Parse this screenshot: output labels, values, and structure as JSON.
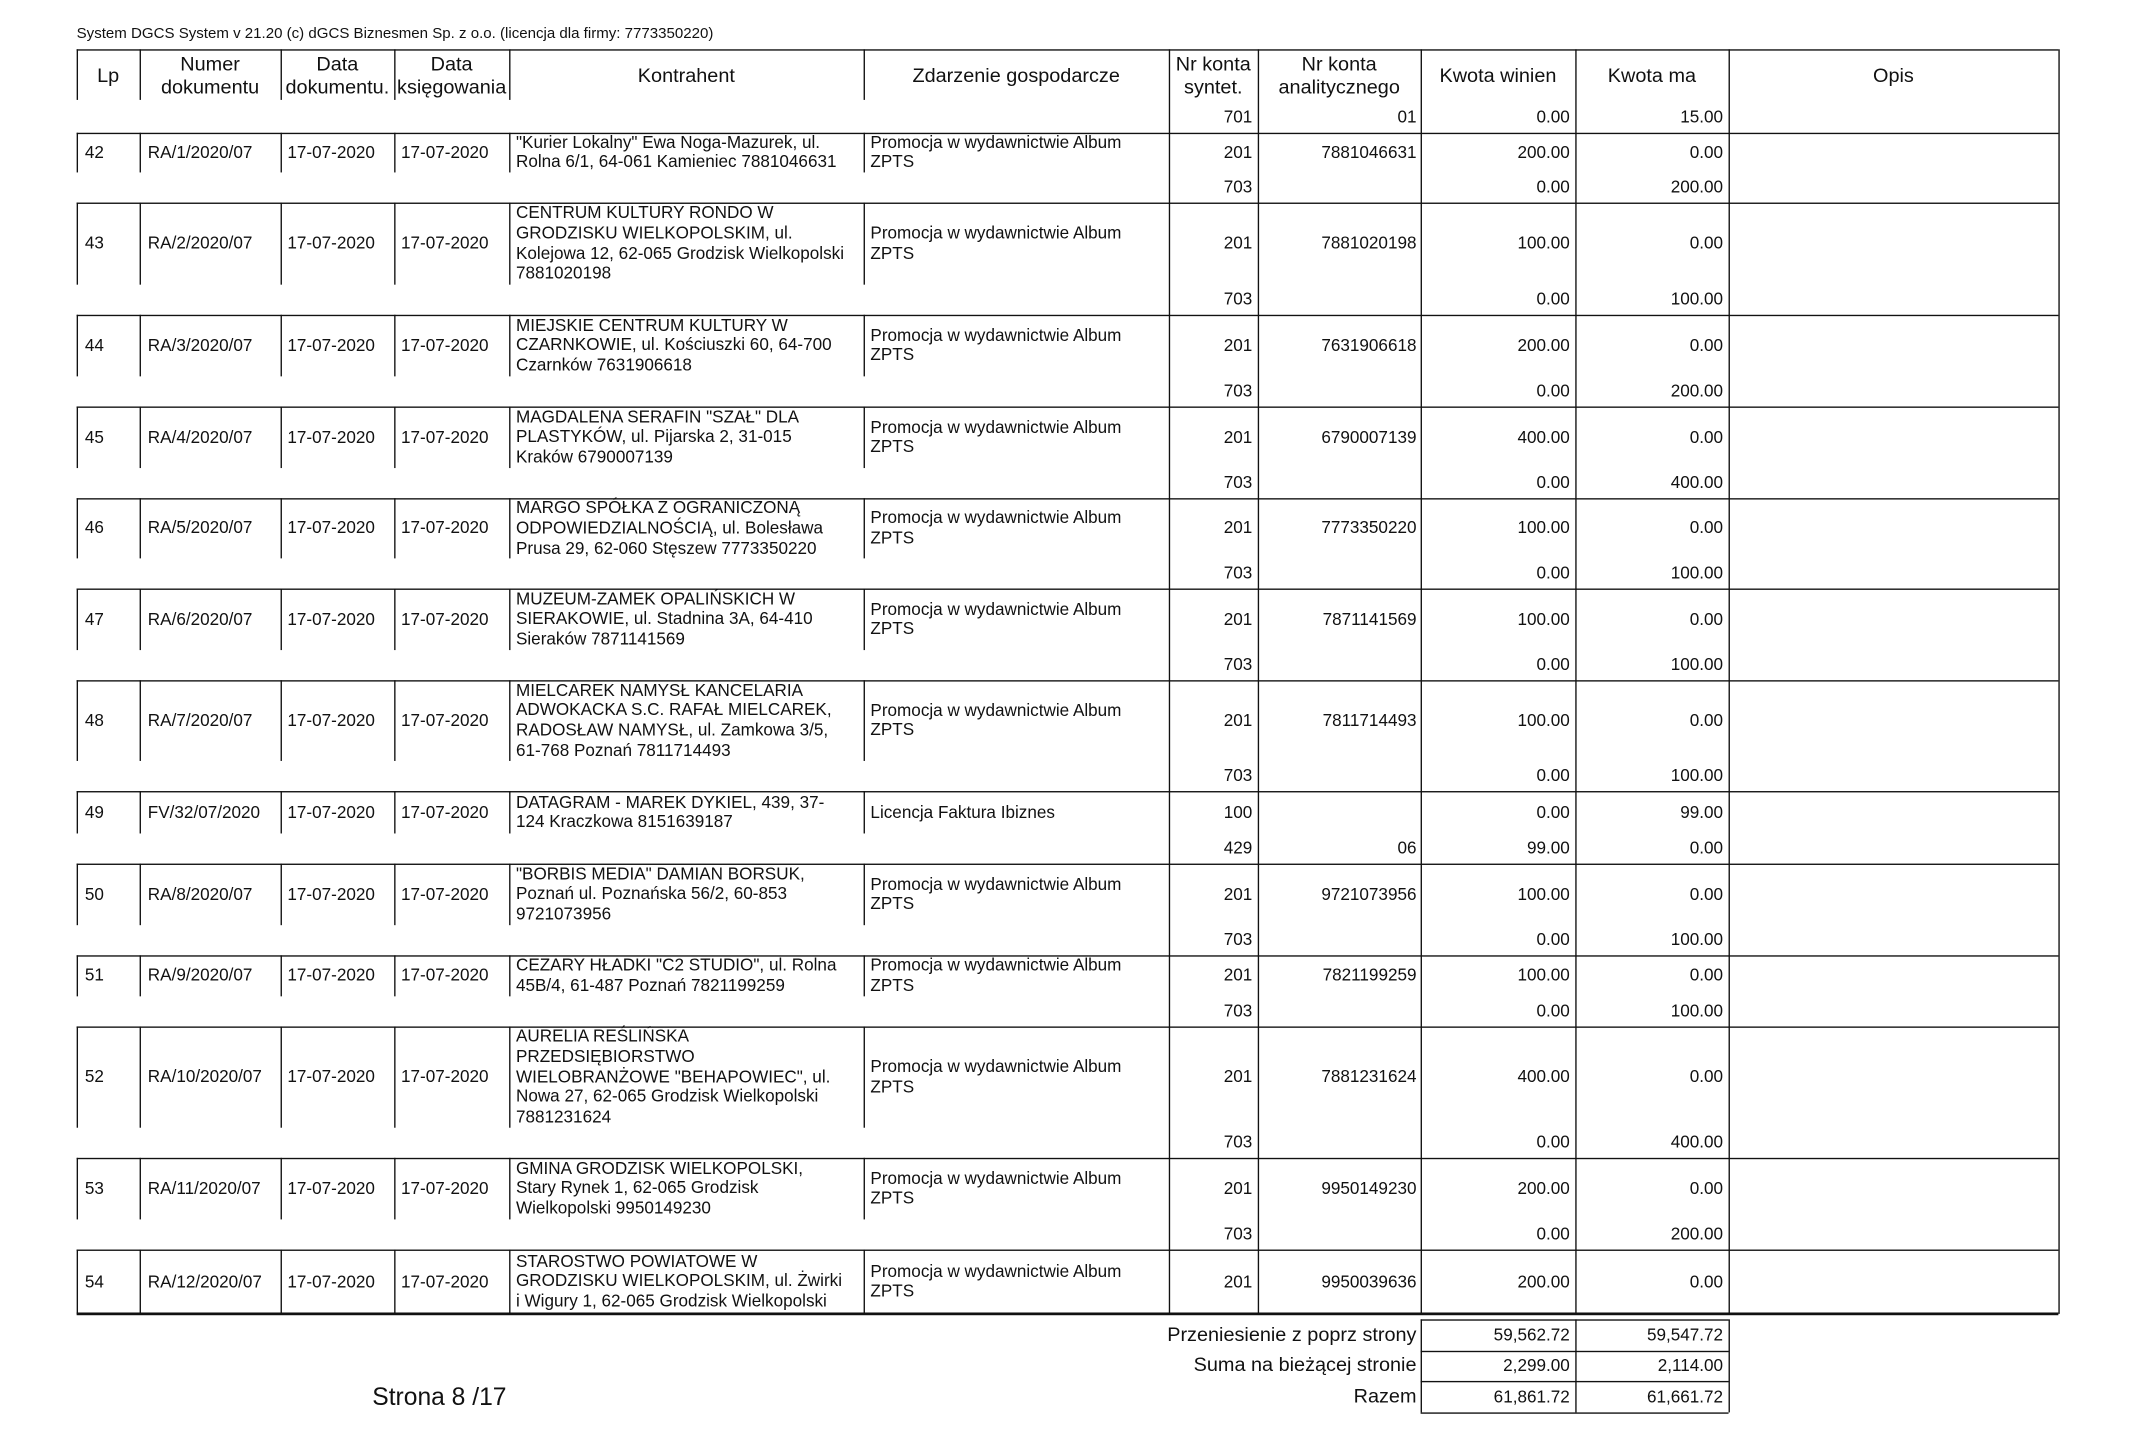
{
  "header": {
    "system": "System DGCS System v 21.20  (c) dGCS Biznesmen Sp. z o.o. (licencja dla firmy: 7773350220)"
  },
  "table": {
    "columns": [
      [
        "Lp"
      ],
      [
        "Numer",
        "dokumentu"
      ],
      [
        "Data",
        "dokumentu."
      ],
      [
        "Data",
        "księgowania"
      ],
      [
        "Kontrahent"
      ],
      [
        "Zdarzenie gospodarcze"
      ],
      [
        "Nr konta",
        "syntet."
      ],
      [
        "Nr konta",
        "analitycznego"
      ],
      [
        "Kwota winien"
      ],
      [
        "Kwota ma"
      ],
      [
        "Opis"
      ]
    ],
    "continuation": [
      {
        "syntet": "701",
        "analityczny": "01",
        "winien": "0.00",
        "ma": "15.00"
      }
    ],
    "entries": [
      {
        "lp": "42",
        "numer": "RA/1/2020/07",
        "data_dok": "17-07-2020",
        "data_ksieg": "17-07-2020",
        "kontrahent": [
          "\"Kurier Lokalny\" Ewa Noga-Mazurek, ul.",
          "Rolna 6/1, 64-061 Kamieniec 7881046631"
        ],
        "zdarzenie": [
          "Promocja w wydawnictwie Album",
          "ZPTS"
        ],
        "postings": [
          {
            "syntet": "201",
            "analityczny": "7881046631",
            "winien": "200.00",
            "ma": "0.00"
          },
          {
            "syntet": "703",
            "winien": "0.00",
            "ma": "200.00"
          }
        ]
      },
      {
        "lp": "43",
        "numer": "RA/2/2020/07",
        "data_dok": "17-07-2020",
        "data_ksieg": "17-07-2020",
        "kontrahent": [
          "CENTRUM KULTURY  RONDO  W",
          "GRODZISKU WIELKOPOLSKIM, ul.",
          "Kolejowa 12, 62-065 Grodzisk Wielkopolski",
          "7881020198"
        ],
        "zdarzenie": [
          "Promocja w wydawnictwie Album",
          "ZPTS"
        ],
        "postings": [
          {
            "syntet": "201",
            "analityczny": "7881020198",
            "winien": "100.00",
            "ma": "0.00"
          },
          {
            "syntet": "703",
            "winien": "0.00",
            "ma": "100.00"
          }
        ]
      },
      {
        "lp": "44",
        "numer": "RA/3/2020/07",
        "data_dok": "17-07-2020",
        "data_ksieg": "17-07-2020",
        "kontrahent": [
          "MIEJSKIE CENTRUM KULTURY W",
          "CZARNKOWIE, ul. Kościuszki 60, 64-700",
          "Czarnków 7631906618"
        ],
        "zdarzenie": [
          "Promocja w wydawnictwie Album",
          "ZPTS"
        ],
        "postings": [
          {
            "syntet": "201",
            "analityczny": "7631906618",
            "winien": "200.00",
            "ma": "0.00"
          },
          {
            "syntet": "703",
            "winien": "0.00",
            "ma": "200.00"
          }
        ]
      },
      {
        "lp": "45",
        "numer": "RA/4/2020/07",
        "data_dok": "17-07-2020",
        "data_ksieg": "17-07-2020",
        "kontrahent": [
          "MAGDALENA SERAFIN  \"SZAŁ\" DLA",
          "PLASTYKÓW, ul. Pijarska 2, 31-015",
          "Kraków 6790007139"
        ],
        "zdarzenie": [
          "Promocja w wydawnictwie Album",
          "ZPTS"
        ],
        "postings": [
          {
            "syntet": "201",
            "analityczny": "6790007139",
            "winien": "400.00",
            "ma": "0.00"
          },
          {
            "syntet": "703",
            "winien": "0.00",
            "ma": "400.00"
          }
        ]
      },
      {
        "lp": "46",
        "numer": "RA/5/2020/07",
        "data_dok": "17-07-2020",
        "data_ksieg": "17-07-2020",
        "kontrahent": [
          "MARGO SPÓŁKA Z OGRANICZONĄ",
          "ODPOWIEDZIALNOŚCIĄ, ul. Bolesława",
          "Prusa 29, 62-060 Stęszew 7773350220"
        ],
        "zdarzenie": [
          "Promocja w wydawnictwie Album",
          "ZPTS"
        ],
        "postings": [
          {
            "syntet": "201",
            "analityczny": "7773350220",
            "winien": "100.00",
            "ma": "0.00"
          },
          {
            "syntet": "703",
            "winien": "0.00",
            "ma": "100.00"
          }
        ]
      },
      {
        "lp": "47",
        "numer": "RA/6/2020/07",
        "data_dok": "17-07-2020",
        "data_ksieg": "17-07-2020",
        "kontrahent": [
          "MUZEUM-ZAMEK OPALIŃSKICH W",
          "SIERAKOWIE, ul. Stadnina 3A, 64-410",
          "Sieraków 7871141569"
        ],
        "zdarzenie": [
          "Promocja w wydawnictwie Album",
          "ZPTS"
        ],
        "postings": [
          {
            "syntet": "201",
            "analityczny": "7871141569",
            "winien": "100.00",
            "ma": "0.00"
          },
          {
            "syntet": "703",
            "winien": "0.00",
            "ma": "100.00"
          }
        ]
      },
      {
        "lp": "48",
        "numer": "RA/7/2020/07",
        "data_dok": "17-07-2020",
        "data_ksieg": "17-07-2020",
        "kontrahent": [
          "MIELCAREK NAMYSŁ KANCELARIA",
          "ADWOKACKA S.C.  RAFAŁ MIELCAREK,",
          "RADOSŁAW NAMYSŁ, ul. Zamkowa 3/5,",
          "61-768 Poznań 7811714493"
        ],
        "zdarzenie": [
          "Promocja w wydawnictwie Album",
          "ZPTS"
        ],
        "postings": [
          {
            "syntet": "201",
            "analityczny": "7811714493",
            "winien": "100.00",
            "ma": "0.00"
          },
          {
            "syntet": "703",
            "winien": "0.00",
            "ma": "100.00"
          }
        ]
      },
      {
        "lp": "49",
        "numer": "FV/32/07/2020",
        "data_dok": "17-07-2020",
        "data_ksieg": "17-07-2020",
        "kontrahent": [
          "DATAGRAM - MAREK DYKIEL,  439, 37-",
          "124 Kraczkowa 8151639187"
        ],
        "zdarzenie": [
          "Licencja Faktura Ibiznes"
        ],
        "postings": [
          {
            "syntet": "100",
            "winien": "0.00",
            "ma": "99.00"
          },
          {
            "syntet": "429",
            "analityczny": "06",
            "winien": "99.00",
            "ma": "0.00"
          }
        ]
      },
      {
        "lp": "50",
        "numer": "RA/8/2020/07",
        "data_dok": "17-07-2020",
        "data_ksieg": "17-07-2020",
        "kontrahent": [
          "\"BORBIS MEDIA\" DAMIAN BORSUK,",
          "Poznań ul. Poznańska 56/2, 60-853",
          "9721073956"
        ],
        "zdarzenie": [
          "Promocja w wydawnictwie Album",
          "ZPTS"
        ],
        "postings": [
          {
            "syntet": "201",
            "analityczny": "9721073956",
            "winien": "100.00",
            "ma": "0.00"
          },
          {
            "syntet": "703",
            "winien": "0.00",
            "ma": "100.00"
          }
        ]
      },
      {
        "lp": "51",
        "numer": "RA/9/2020/07",
        "data_dok": "17-07-2020",
        "data_ksieg": "17-07-2020",
        "kontrahent": [
          "CEZARY HŁADKI \"C2 STUDIO\", ul. Rolna",
          "45B/4, 61-487 Poznań 7821199259"
        ],
        "zdarzenie": [
          "Promocja w wydawnictwie Album",
          "ZPTS"
        ],
        "postings": [
          {
            "syntet": "201",
            "analityczny": "7821199259",
            "winien": "100.00",
            "ma": "0.00"
          },
          {
            "syntet": "703",
            "winien": "0.00",
            "ma": "100.00"
          }
        ]
      },
      {
        "lp": "52",
        "numer": "RA/10/2020/07",
        "data_dok": "17-07-2020",
        "data_ksieg": "17-07-2020",
        "kontrahent": [
          "AURELIA REŚLIŃSKA",
          "PRZEDSIĘBIORSTWO",
          "WIELOBRANŻOWE \"BEHAPOWIEC\", ul.",
          "Nowa 27, 62-065 Grodzisk Wielkopolski",
          "7881231624"
        ],
        "zdarzenie": [
          "Promocja w wydawnictwie Album",
          "ZPTS"
        ],
        "postings": [
          {
            "syntet": "201",
            "analityczny": "7881231624",
            "winien": "400.00",
            "ma": "0.00"
          },
          {
            "syntet": "703",
            "winien": "0.00",
            "ma": "400.00"
          }
        ]
      },
      {
        "lp": "53",
        "numer": "RA/11/2020/07",
        "data_dok": "17-07-2020",
        "data_ksieg": "17-07-2020",
        "kontrahent": [
          "GMINA GRODZISK WIELKOPOLSKI,",
          "Stary Rynek 1, 62-065 Grodzisk",
          "Wielkopolski 9950149230"
        ],
        "zdarzenie": [
          "Promocja w wydawnictwie Album",
          "ZPTS"
        ],
        "postings": [
          {
            "syntet": "201",
            "analityczny": "9950149230",
            "winien": "200.00",
            "ma": "0.00"
          },
          {
            "syntet": "703",
            "winien": "0.00",
            "ma": "200.00"
          }
        ]
      },
      {
        "lp": "54",
        "numer": "RA/12/2020/07",
        "data_dok": "17-07-2020",
        "data_ksieg": "17-07-2020",
        "kontrahent": [
          "STAROSTWO POWIATOWE W",
          "GRODZISKU WIELKOPOLSKIM, ul. Żwirki",
          "i Wigury 1, 62-065 Grodzisk Wielkopolski"
        ],
        "zdarzenie": [
          "Promocja w wydawnictwie Album",
          "ZPTS"
        ],
        "postings": [
          {
            "syntet": "201",
            "analityczny": "9950039636",
            "winien": "200.00",
            "ma": "0.00"
          }
        ]
      }
    ]
  },
  "totals": [
    {
      "label": "Przeniesienie z poprz strony",
      "winien": "59,562.72",
      "ma": "59,547.72"
    },
    {
      "label": "Suma na bieżącej stronie",
      "winien": "2,299.00",
      "ma": "2,114.00"
    },
    {
      "label": "Razem",
      "winien": "61,861.72",
      "ma": "61,661.72"
    }
  ],
  "footer": {
    "page": "Strona 8 /17"
  }
}
